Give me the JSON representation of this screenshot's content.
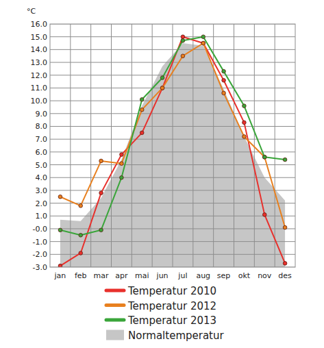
{
  "chart_data": {
    "type": "line",
    "y_label": "°C",
    "categories": [
      "jan",
      "feb",
      "mar",
      "apr",
      "mai",
      "jun",
      "jul",
      "aug",
      "sep",
      "okt",
      "nov",
      "des"
    ],
    "series": [
      {
        "name": "Normaltemperatur",
        "type": "area",
        "color": "#c6c6c6",
        "values": [
          0.7,
          0.6,
          2.4,
          5.4,
          9.6,
          12.7,
          14.5,
          14.3,
          10.9,
          7.2,
          4.0,
          2.2
        ]
      },
      {
        "name": "Temperatur 2010",
        "type": "line",
        "color": "#e8302c",
        "marker": "circle",
        "values": [
          -2.9,
          -1.9,
          2.8,
          5.8,
          7.5,
          11.0,
          15.0,
          14.5,
          11.6,
          8.3,
          1.1,
          -2.7
        ]
      },
      {
        "name": "Temperatur 2012",
        "type": "line",
        "color": "#e8801f",
        "marker": "circle",
        "values": [
          2.5,
          1.8,
          5.3,
          5.1,
          9.3,
          11.0,
          13.5,
          14.5,
          10.6,
          7.2,
          5.6,
          0.1
        ]
      },
      {
        "name": "Temperatur 2013",
        "type": "line",
        "color": "#3aa53a",
        "marker": "circle",
        "values": [
          -0.1,
          -0.5,
          -0.1,
          4.0,
          10.1,
          11.8,
          14.7,
          15.0,
          12.3,
          9.6,
          5.6,
          5.4
        ]
      }
    ],
    "ylim": [
      -3,
      16
    ],
    "yticks": [
      {
        "value": -3,
        "label": "-3.0"
      },
      {
        "value": -2,
        "label": "-2.0"
      },
      {
        "value": -1,
        "label": "-1.0"
      },
      {
        "value": 0,
        "label": "-0.0"
      },
      {
        "value": 1,
        "label": "1.0"
      },
      {
        "value": 2,
        "label": "2.0"
      },
      {
        "value": 3,
        "label": "3.0"
      },
      {
        "value": 4,
        "label": "4.0"
      },
      {
        "value": 5,
        "label": "5.0"
      },
      {
        "value": 6,
        "label": "6.0"
      },
      {
        "value": 7,
        "label": "7.0"
      },
      {
        "value": 8,
        "label": "8.0"
      },
      {
        "value": 9,
        "label": "9.0"
      },
      {
        "value": 10,
        "label": "10.0"
      },
      {
        "value": 11,
        "label": "11.0"
      },
      {
        "value": 12,
        "label": "12.0"
      },
      {
        "value": 13,
        "label": "13.0"
      },
      {
        "value": 14,
        "label": "14.0"
      },
      {
        "value": 15,
        "label": "15.0"
      },
      {
        "value": 16,
        "label": "16.0"
      }
    ],
    "grid": true,
    "legend": "bottom"
  }
}
